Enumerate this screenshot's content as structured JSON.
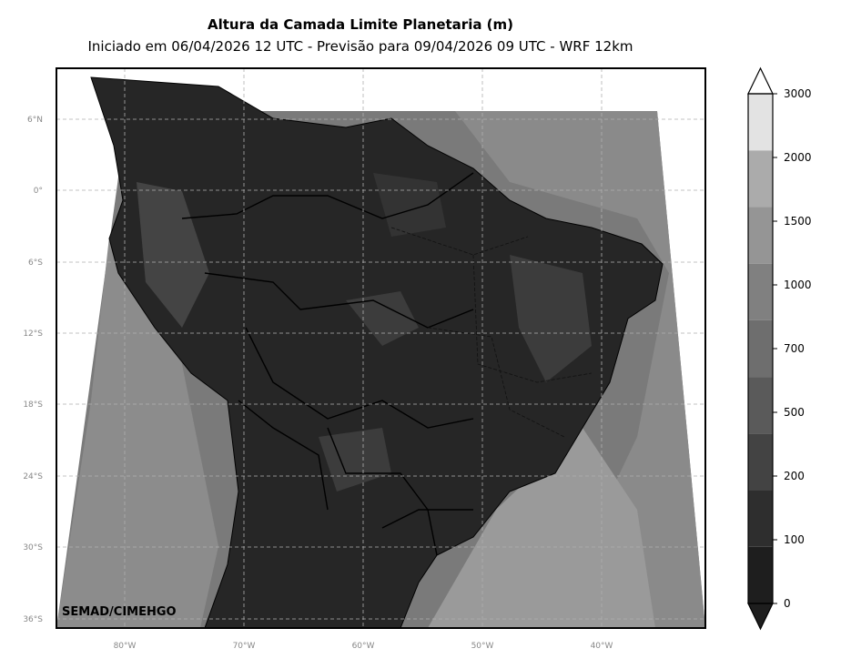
{
  "header": {
    "title": "Altura da Camada Limite Planetaria (m)",
    "subtitle": "Iniciado em 06/04/2026 12 UTC - Previsão para 09/04/2026 09 UTC - WRF 12km"
  },
  "map": {
    "lon_ticks": [
      "80°W",
      "70°W",
      "60°W",
      "50°W",
      "40°W"
    ],
    "lat_ticks": [
      "6°N",
      "0°",
      "6°S",
      "12°S",
      "18°S",
      "24°S",
      "30°S",
      "36°S"
    ],
    "credit": "SEMAD/CIMEHGO",
    "gridlines": true
  },
  "colorbar": {
    "levels": [
      "0",
      "100",
      "200",
      "500",
      "700",
      "1000",
      "1500",
      "2000",
      "3000"
    ],
    "colors": [
      "#1e1e1e",
      "#2e2e2e",
      "#434343",
      "#5a5a5a",
      "#6e6e6e",
      "#808080",
      "#959595",
      "#ababab",
      "#e3e3e3"
    ],
    "extend": "both"
  },
  "palette": {
    "frame": "#000000",
    "gridline": "#b0b0b0"
  }
}
